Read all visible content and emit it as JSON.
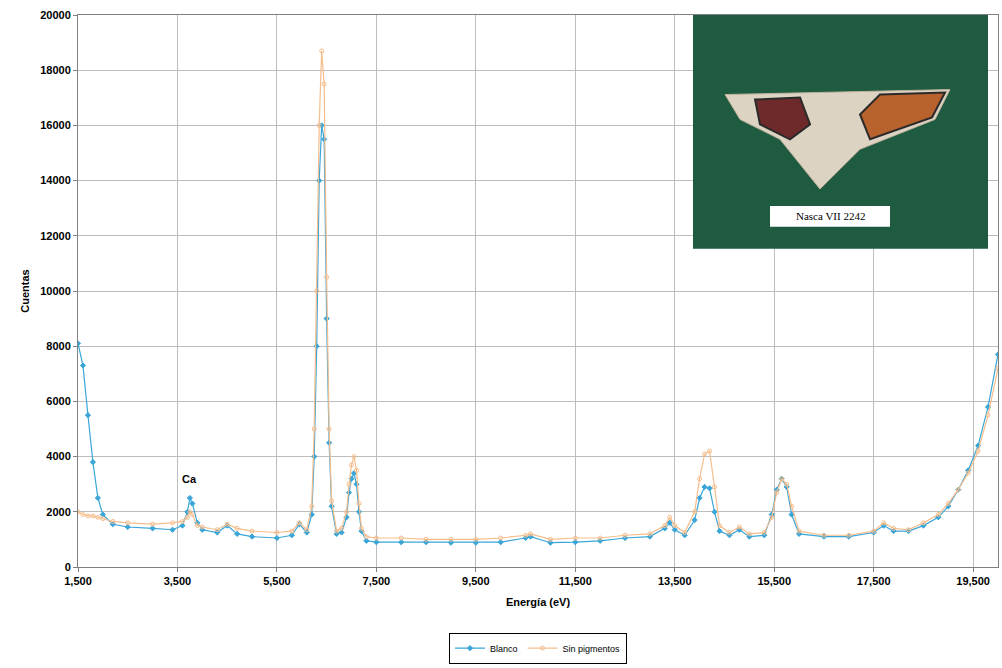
{
  "chart_data": {
    "type": "line",
    "x_title": "Energía (eV)",
    "y_title": "Cuentas",
    "x": [
      1500,
      1600,
      1700,
      1800,
      1900,
      2000,
      2200,
      2500,
      3000,
      3400,
      3600,
      3700,
      3750,
      3800,
      3900,
      4000,
      4300,
      4500,
      4700,
      5000,
      5500,
      5800,
      5950,
      6100,
      6200,
      6250,
      6300,
      6350,
      6400,
      6450,
      6500,
      6550,
      6600,
      6700,
      6800,
      6900,
      6950,
      7000,
      7050,
      7100,
      7150,
      7200,
      7300,
      7500,
      8000,
      8500,
      9000,
      9500,
      10000,
      10500,
      10600,
      11000,
      11500,
      12000,
      12500,
      13000,
      13300,
      13400,
      13500,
      13700,
      13900,
      14000,
      14100,
      14200,
      14300,
      14400,
      14600,
      14800,
      15000,
      15300,
      15450,
      15550,
      15650,
      15750,
      15850,
      16000,
      16500,
      17000,
      17500,
      17700,
      17900,
      18200,
      18500,
      18800,
      19000,
      19200,
      19400,
      19600,
      19800,
      20000
    ],
    "series": [
      {
        "name": "Blanco",
        "color": "#3aa6d8",
        "marker": "diamond",
        "line_style": "solid",
        "values": [
          8100,
          7300,
          5500,
          3800,
          2500,
          1900,
          1550,
          1450,
          1400,
          1350,
          1500,
          2000,
          2500,
          2300,
          1600,
          1350,
          1250,
          1500,
          1200,
          1100,
          1050,
          1150,
          1550,
          1250,
          1900,
          4000,
          8000,
          14000,
          16000,
          15500,
          9000,
          4500,
          2200,
          1200,
          1250,
          1800,
          2700,
          3200,
          3400,
          3000,
          2000,
          1300,
          950,
          900,
          900,
          900,
          880,
          880,
          900,
          1050,
          1100,
          880,
          900,
          950,
          1050,
          1100,
          1400,
          1600,
          1350,
          1150,
          1700,
          2500,
          2900,
          2850,
          2000,
          1300,
          1150,
          1350,
          1100,
          1150,
          1900,
          2800,
          3200,
          2900,
          1900,
          1200,
          1100,
          1100,
          1250,
          1500,
          1300,
          1300,
          1500,
          1800,
          2200,
          2800,
          3500,
          4400,
          5800,
          7700
        ]
      },
      {
        "name": "Sin pigmentos",
        "color": "#f6bd8c",
        "marker": "circle-open",
        "line_style": "solid",
        "values": [
          2000,
          1900,
          1850,
          1850,
          1800,
          1750,
          1650,
          1600,
          1550,
          1600,
          1650,
          1800,
          2000,
          1900,
          1500,
          1450,
          1350,
          1550,
          1400,
          1300,
          1250,
          1300,
          1600,
          1350,
          2200,
          5000,
          10000,
          16000,
          18700,
          17500,
          10500,
          5000,
          2400,
          1300,
          1400,
          2000,
          3000,
          3700,
          4000,
          3500,
          2300,
          1400,
          1100,
          1050,
          1050,
          1000,
          1000,
          1000,
          1050,
          1150,
          1200,
          1000,
          1050,
          1050,
          1150,
          1200,
          1500,
          1800,
          1500,
          1250,
          2000,
          3200,
          4100,
          4200,
          2900,
          1500,
          1250,
          1450,
          1200,
          1250,
          1800,
          2700,
          3200,
          3000,
          2200,
          1300,
          1150,
          1150,
          1300,
          1600,
          1400,
          1350,
          1600,
          1900,
          2300,
          2800,
          3400,
          4200,
          5500,
          7200
        ]
      }
    ],
    "xlim": [
      1500,
      20000
    ],
    "xticks": [
      {
        "value": 1500,
        "label": "1,500"
      },
      {
        "value": 3500,
        "label": "3,500"
      },
      {
        "value": 5500,
        "label": "5,500"
      },
      {
        "value": 7500,
        "label": "7,500"
      },
      {
        "value": 9500,
        "label": "9,500"
      },
      {
        "value": 11500,
        "label": "11,500"
      },
      {
        "value": 13500,
        "label": "13,500"
      },
      {
        "value": 15500,
        "label": "15,500"
      },
      {
        "value": 17500,
        "label": "17,500"
      },
      {
        "value": 19500,
        "label": "19,500"
      }
    ],
    "ylim": [
      0,
      20000
    ],
    "yticks": [
      0,
      2000,
      4000,
      6000,
      8000,
      10000,
      12000,
      14000,
      16000,
      18000,
      20000
    ],
    "grid": true,
    "legend": "bottom",
    "annotations": [
      {
        "text": "Ca",
        "x": 3750,
        "y": 3200
      }
    ],
    "photo_label": "Nasca VII 2242"
  }
}
